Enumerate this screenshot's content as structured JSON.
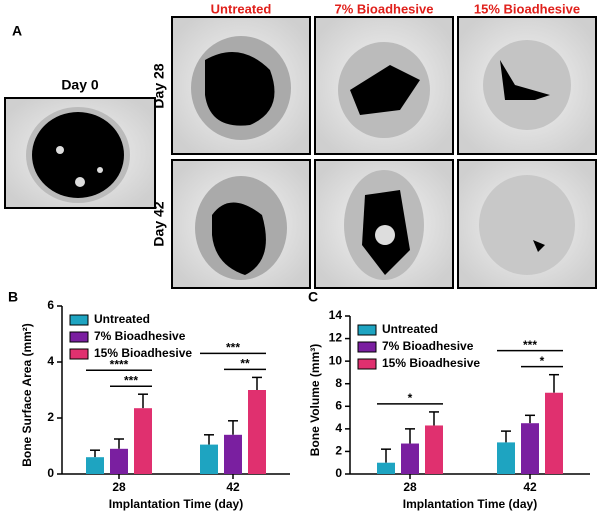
{
  "figure": {
    "panel_a": "A",
    "day0": "Day 0",
    "columns": [
      "Untreated",
      "7% Bioadhesive",
      "15% Bioadhesive"
    ],
    "rows": [
      "Day 28",
      "Day 42"
    ]
  },
  "chart_data": [
    {
      "type": "bar",
      "panel": "B",
      "y_label": "Bone Surface Area (mm²)",
      "x_label": "Implantation Time (day)",
      "categories": [
        "28",
        "42"
      ],
      "ylim": [
        0,
        6
      ],
      "yticks": [
        0,
        2,
        4,
        6
      ],
      "series": [
        {
          "name": "Untreated",
          "color": "#1ea4c1",
          "values": [
            0.6,
            1.05
          ],
          "errors": [
            0.25,
            0.35
          ]
        },
        {
          "name": "7% Bioadhesive",
          "color": "#7a1fa0",
          "values": [
            0.9,
            1.4
          ],
          "errors": [
            0.35,
            0.5
          ]
        },
        {
          "name": "15% Bioadhesive",
          "color": "#e0306f",
          "values": [
            2.35,
            3.0
          ],
          "errors": [
            0.5,
            0.45
          ]
        }
      ],
      "annotations": [
        {
          "label": "****",
          "category": "28",
          "between": [
            "Untreated",
            "15% Bioadhesive"
          ]
        },
        {
          "label": "***",
          "category": "28",
          "between": [
            "7% Bioadhesive",
            "15% Bioadhesive"
          ]
        },
        {
          "label": "***",
          "category": "42",
          "between": [
            "Untreated",
            "15% Bioadhesive"
          ]
        },
        {
          "label": "**",
          "category": "42",
          "between": [
            "7% Bioadhesive",
            "15% Bioadhesive"
          ]
        }
      ]
    },
    {
      "type": "bar",
      "panel": "C",
      "y_label": "Bone Volume (mm³)",
      "x_label": "Implantation Time (day)",
      "categories": [
        "28",
        "42"
      ],
      "ylim": [
        0,
        14
      ],
      "yticks": [
        0,
        2,
        4,
        6,
        8,
        10,
        12,
        14
      ],
      "series": [
        {
          "name": "Untreated",
          "color": "#1ea4c1",
          "values": [
            1.0,
            2.8
          ],
          "errors": [
            1.2,
            1.0
          ]
        },
        {
          "name": "7% Bioadhesive",
          "color": "#7a1fa0",
          "values": [
            2.7,
            4.5
          ],
          "errors": [
            1.3,
            0.7
          ]
        },
        {
          "name": "15% Bioadhesive",
          "color": "#e0306f",
          "values": [
            4.3,
            7.2
          ],
          "errors": [
            1.2,
            1.6
          ]
        }
      ],
      "annotations": [
        {
          "label": "*",
          "category": "28",
          "between": [
            "Untreated",
            "15% Bioadhesive"
          ]
        },
        {
          "label": "***",
          "category": "42",
          "between": [
            "Untreated",
            "15% Bioadhesive"
          ]
        },
        {
          "label": "*",
          "category": "42",
          "between": [
            "7% Bioadhesive",
            "15% Bioadhesive"
          ]
        }
      ]
    }
  ]
}
